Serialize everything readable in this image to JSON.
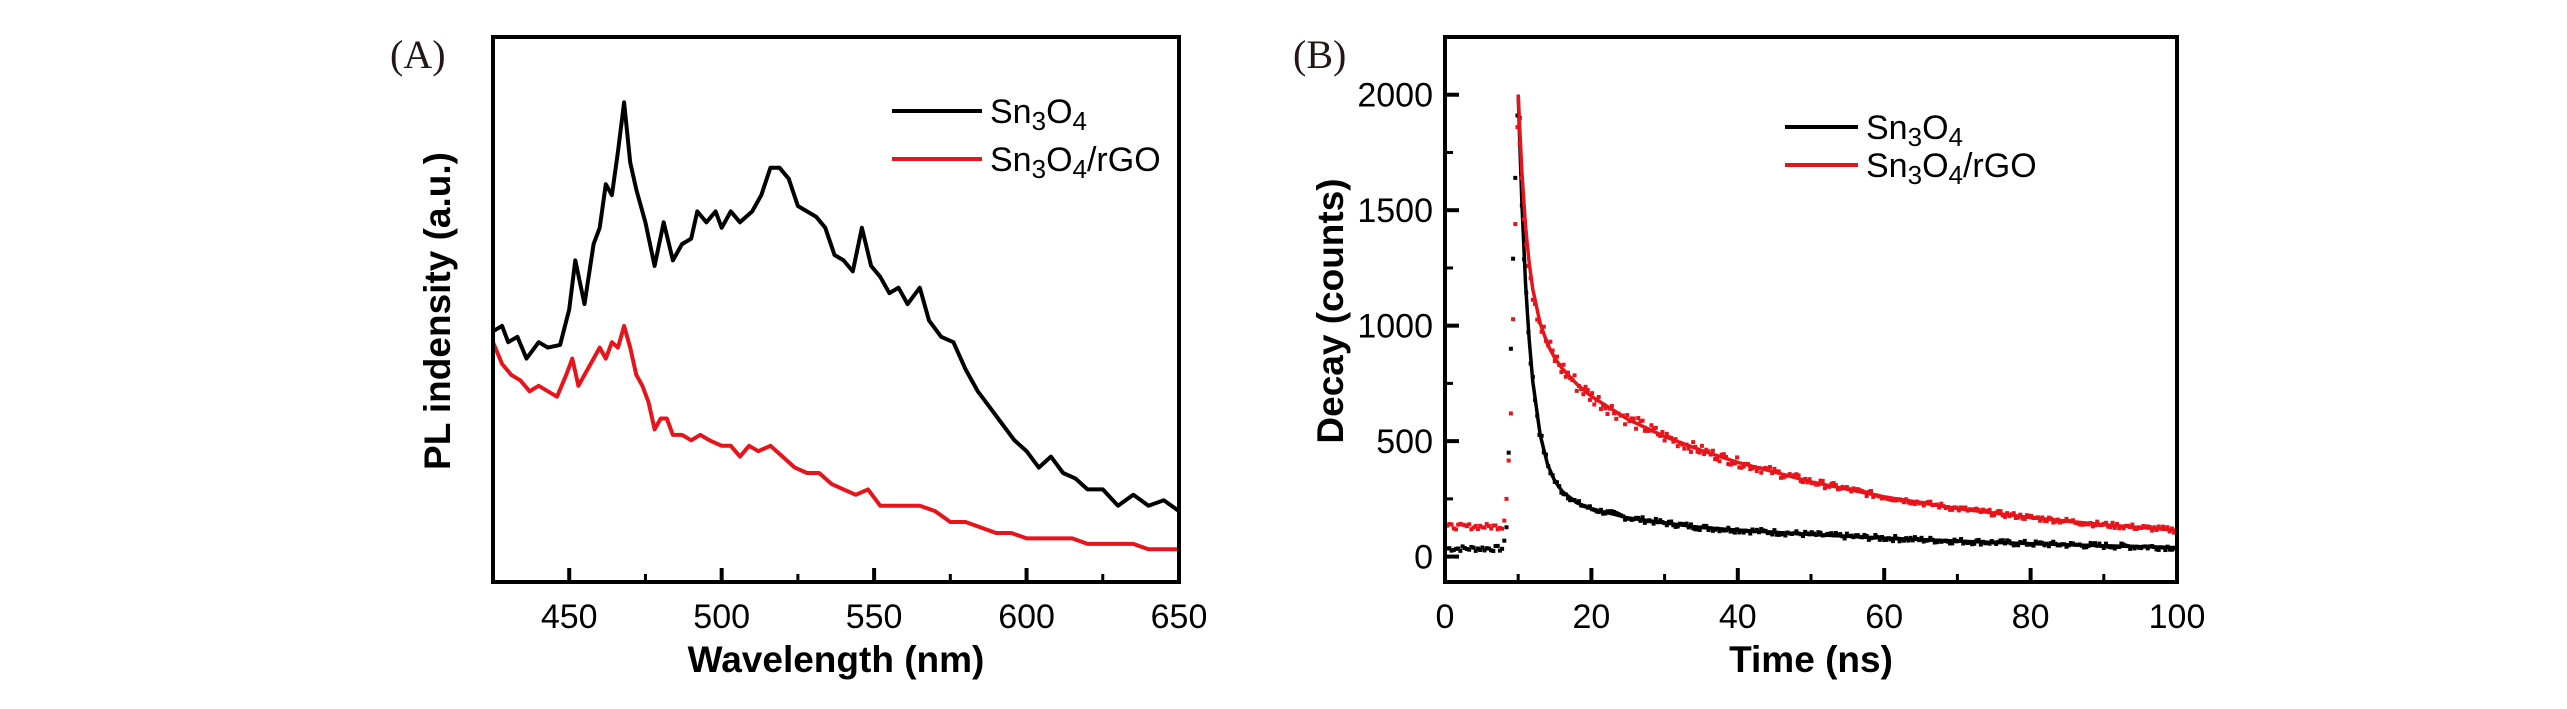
{
  "chart_data": [
    {
      "type": "line",
      "panel_label": "(A)",
      "xlabel": "Wavelength (nm)",
      "ylabel": "PL indensity (a.u.)",
      "xlim": [
        425,
        650
      ],
      "ylim": [
        0,
        100
      ],
      "xticks": [
        450,
        500,
        550,
        600,
        650
      ],
      "xminor": [
        475,
        525,
        575,
        625
      ],
      "grid": false,
      "legend_position": "top-right",
      "series": [
        {
          "name": "Sn3O4",
          "color": "#000000",
          "x": [
            425,
            428,
            430,
            433,
            436,
            440,
            443,
            447,
            450,
            452,
            455,
            458,
            460,
            462,
            464,
            466,
            468,
            470,
            472,
            475,
            478,
            481,
            484,
            487,
            490,
            492,
            495,
            498,
            500,
            503,
            506,
            510,
            513,
            516,
            519,
            522,
            525,
            528,
            531,
            534,
            537,
            540,
            543,
            546,
            549,
            552,
            555,
            558,
            561,
            565,
            568,
            572,
            576,
            580,
            584,
            588,
            592,
            596,
            600,
            604,
            608,
            612,
            616,
            620,
            625,
            630,
            635,
            640,
            645,
            650
          ],
          "y": [
            46,
            47,
            44,
            45,
            41,
            44,
            43,
            43.5,
            50,
            59,
            51,
            62,
            65,
            73,
            71,
            79,
            88,
            77,
            72,
            66,
            58,
            66,
            59,
            62,
            63,
            68,
            66,
            68,
            65,
            68,
            66,
            68,
            71,
            76,
            76,
            74,
            69,
            68,
            67,
            65,
            60,
            59,
            57,
            65,
            58,
            56,
            53,
            54,
            51,
            54,
            48,
            45,
            44,
            39,
            35,
            32,
            29,
            26,
            24,
            21,
            23,
            20,
            19,
            17,
            17,
            14,
            16,
            14,
            15,
            13
          ]
        },
        {
          "name": "Sn3O4/rGO",
          "color": "#e8141b",
          "x": [
            425,
            428,
            431,
            434,
            437,
            440,
            443,
            446,
            449,
            451,
            453,
            455,
            458,
            460,
            462,
            464,
            466,
            468,
            470,
            472,
            474,
            476,
            478,
            480,
            482,
            484,
            487,
            490,
            493,
            496,
            500,
            503,
            506,
            509,
            512,
            516,
            520,
            524,
            528,
            532,
            536,
            540,
            544,
            548,
            552,
            556,
            560,
            565,
            570,
            575,
            580,
            585,
            590,
            595,
            600,
            605,
            610,
            615,
            620,
            625,
            630,
            635,
            640,
            645,
            650
          ],
          "y": [
            44,
            40,
            38,
            37,
            35,
            36,
            35,
            34,
            38,
            41,
            36,
            38,
            41,
            43,
            41,
            44,
            43,
            47,
            43,
            38,
            36,
            33,
            28,
            30,
            30,
            27,
            27,
            26,
            27,
            26,
            25,
            25,
            23,
            25,
            24,
            25,
            23,
            21,
            20,
            20,
            18,
            17,
            16,
            17,
            14,
            14,
            14,
            14,
            13,
            11,
            11,
            10,
            9,
            9,
            8,
            8,
            8,
            8,
            7,
            7,
            7,
            7,
            6,
            6,
            6
          ]
        }
      ]
    },
    {
      "type": "scatter",
      "panel_label": "(B)",
      "xlabel": "Time (ns)",
      "ylabel": "Decay (counts)",
      "xlim": [
        0,
        100
      ],
      "ylim": [
        -110,
        2250
      ],
      "xticks": [
        0,
        20,
        40,
        60,
        80,
        100
      ],
      "xminor": [
        10,
        30,
        50,
        70,
        90
      ],
      "yticks": [
        0,
        500,
        1000,
        1500,
        2000
      ],
      "yminor": [
        250,
        750,
        1250,
        1750
      ],
      "grid": false,
      "legend_position": "top-right",
      "series": [
        {
          "name": "Sn3O4",
          "color": "#000000",
          "t": [
            0,
            8,
            8.5,
            9,
            9.5,
            10,
            10.5,
            11,
            11.5,
            12,
            13,
            14,
            15,
            16,
            18,
            20,
            25,
            30,
            35,
            40,
            50,
            60,
            70,
            80,
            90,
            100
          ],
          "counts": [
            35,
            35,
            150,
            900,
            1550,
            2000,
            1529,
            1186,
            939,
            757,
            527,
            400,
            327,
            283,
            233,
            207,
            168,
            146,
            126,
            115,
            96,
            80,
            67,
            56,
            47,
            39
          ]
        },
        {
          "name": "Sn3O4/rGO",
          "color": "#e8141b",
          "t": [
            0,
            8,
            8.5,
            9,
            9.5,
            10,
            10.5,
            11,
            11.5,
            12,
            13,
            14,
            15,
            16,
            18,
            20,
            25,
            30,
            35,
            40,
            50,
            60,
            70,
            80,
            90,
            100
          ],
          "counts": [
            130,
            130,
            280,
            620,
            1300,
            2000,
            1664,
            1433,
            1272,
            1157,
            1010,
            920,
            859,
            815,
            747,
            694,
            594,
            520,
            460,
            408,
            324,
            259,
            208,
            169,
            138,
            114
          ]
        }
      ]
    }
  ]
}
